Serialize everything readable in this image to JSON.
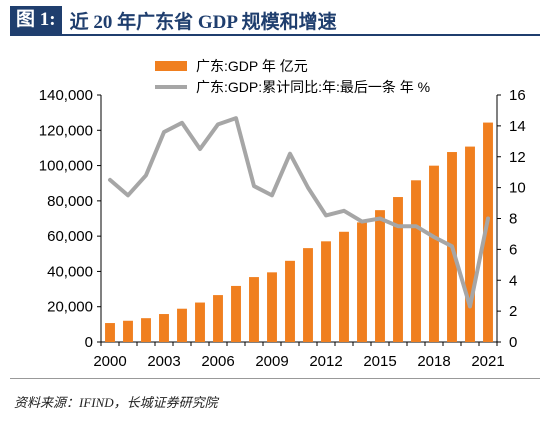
{
  "header": {
    "figure_label": "图 1:",
    "title": "近 20 年广东省 GDP 规模和增速"
  },
  "source": "资料来源：IFIND，长城证券研究院",
  "chart_data": {
    "type": "bar",
    "categories": [
      "2000",
      "2001",
      "2002",
      "2003",
      "2004",
      "2005",
      "2006",
      "2007",
      "2008",
      "2009",
      "2010",
      "2011",
      "2012",
      "2013",
      "2014",
      "2015",
      "2016",
      "2017",
      "2018",
      "2019",
      "2020",
      "2021"
    ],
    "x_tick_labels": [
      "2000",
      "2003",
      "2006",
      "2009",
      "2012",
      "2015",
      "2018",
      "2021"
    ],
    "series": [
      {
        "name": "广东:GDP 年 亿元",
        "type": "bar",
        "axis": "left",
        "color": "#f07f1f",
        "values": [
          10741,
          12039,
          13502,
          15845,
          18865,
          22367,
          26588,
          31777,
          36797,
          39483,
          46013,
          53210,
          57068,
          62475,
          67810,
          74732,
          82163,
          91649,
          99945,
          107671,
          110761,
          124370
        ]
      },
      {
        "name": "广东:GDP:累计同比:年:最后一条 年 %",
        "type": "line",
        "axis": "right",
        "color": "#a6a6a6",
        "values": [
          10.5,
          9.5,
          10.8,
          13.6,
          14.2,
          12.5,
          14.1,
          14.5,
          10.1,
          9.5,
          12.2,
          10.0,
          8.2,
          8.5,
          7.8,
          8.0,
          7.5,
          7.5,
          6.8,
          6.2,
          2.3,
          8.0
        ]
      }
    ],
    "y_left": {
      "min": 0,
      "max": 140000,
      "ticks": [
        "0",
        "20,000",
        "40,000",
        "60,000",
        "80,000",
        "100,000",
        "120,000",
        "140,000"
      ]
    },
    "y_right": {
      "min": 0,
      "max": 16,
      "ticks": [
        "0",
        "2",
        "4",
        "6",
        "8",
        "10",
        "12",
        "14",
        "16"
      ]
    },
    "legend_position": "top-center",
    "grid": false
  }
}
